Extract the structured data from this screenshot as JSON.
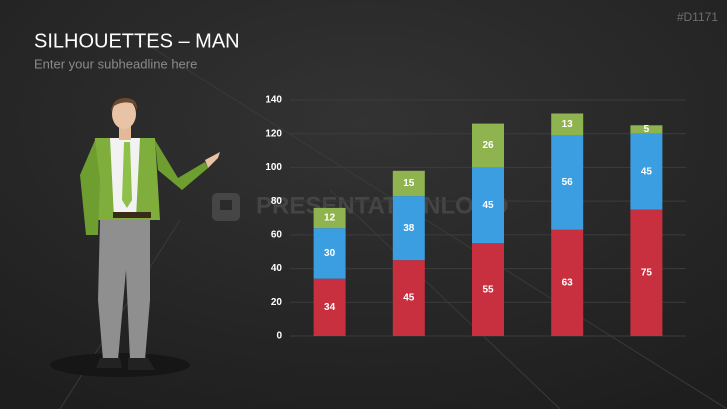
{
  "title": "SILHOUETTES – MAN",
  "subtitle": "Enter your subheadline here",
  "code": "#D1171",
  "watermark": "PRESENTATIONLOAD",
  "chart_data": {
    "type": "stacked-bar",
    "categories": [
      null,
      null,
      null,
      null,
      null
    ],
    "series": [
      {
        "color": "#c8303f",
        "values": [
          34,
          45,
          55,
          63,
          75
        ]
      },
      {
        "color": "#3a9ee0",
        "values": [
          30,
          38,
          45,
          56,
          45
        ]
      },
      {
        "color": "#8fb34f",
        "values": [
          12,
          15,
          26,
          13,
          5
        ]
      }
    ],
    "ylim": [
      0,
      140
    ],
    "yticks": [
      0,
      20,
      40,
      60,
      80,
      100,
      120,
      140
    ],
    "grid": true
  }
}
